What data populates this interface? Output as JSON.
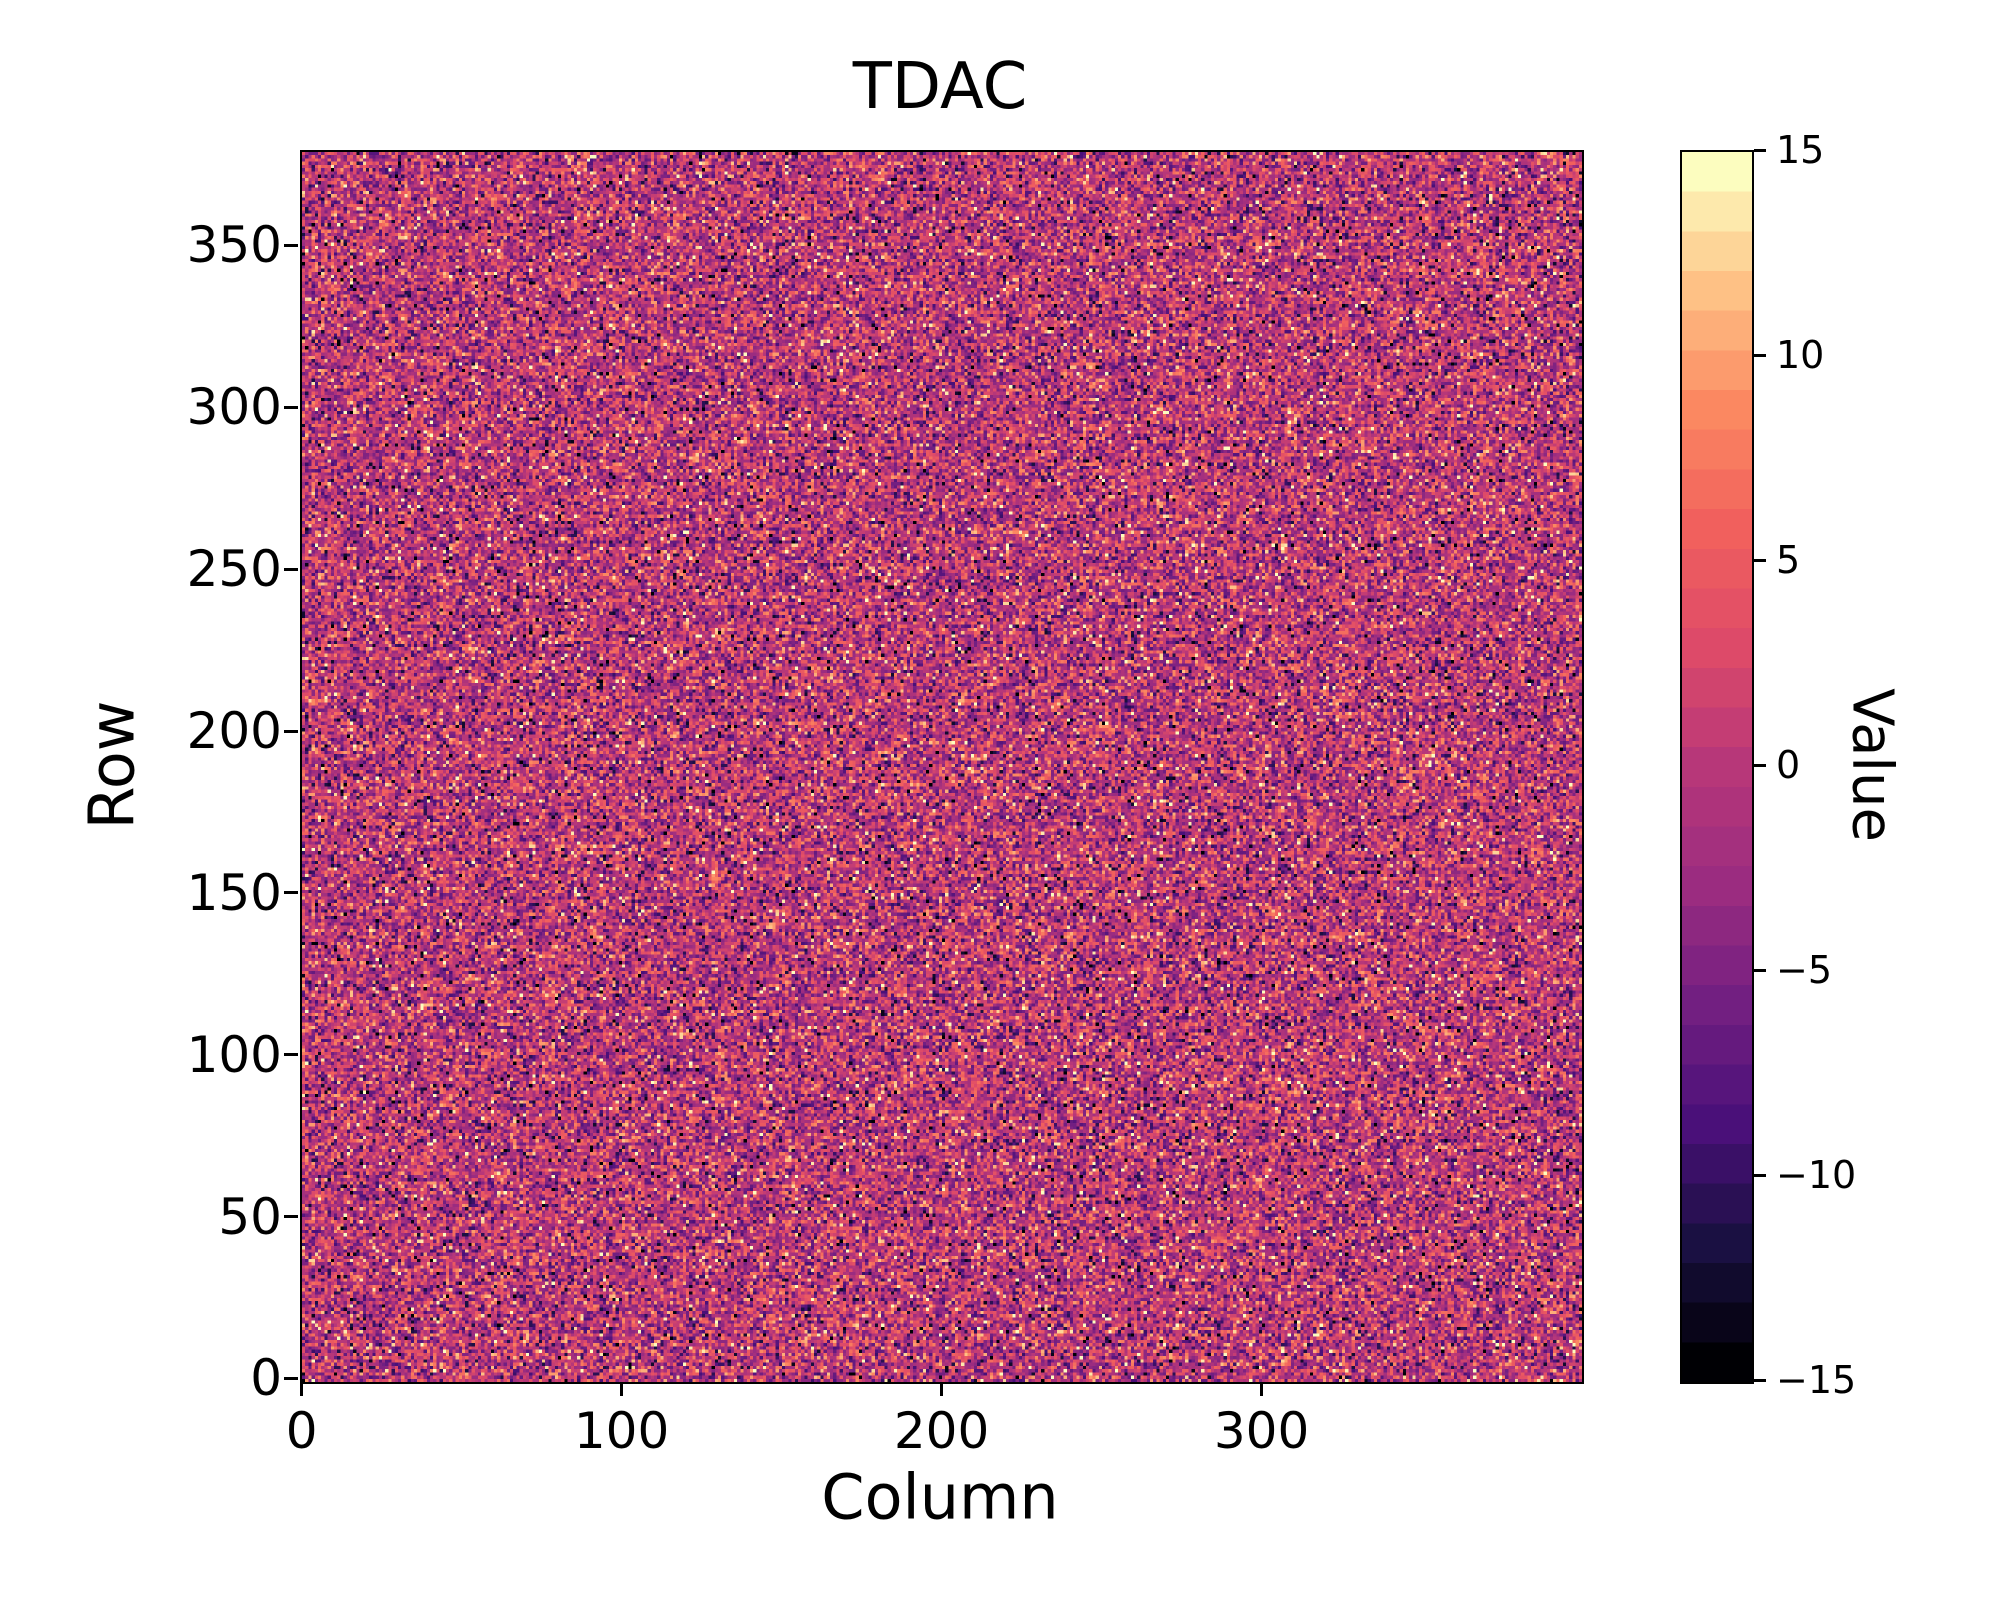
{
  "chart_data": {
    "type": "heatmap",
    "title": "TDAC",
    "xlabel": "Column",
    "ylabel": "Row",
    "colorbar_label": "Value",
    "n_cols": 400,
    "n_rows": 380,
    "vmin": -15,
    "vmax": 15,
    "value_levels": 31,
    "x_tick_values": [
      0,
      100,
      200,
      300
    ],
    "x_tick_labels": [
      "0",
      "100",
      "200",
      "300"
    ],
    "y_tick_values": [
      0,
      50,
      100,
      150,
      200,
      250,
      300,
      350
    ],
    "y_tick_labels": [
      "0",
      "50",
      "100",
      "150",
      "200",
      "250",
      "300",
      "350"
    ],
    "colorbar_tick_values": [
      15,
      10,
      5,
      0,
      -5,
      -10,
      -15
    ],
    "colorbar_tick_labels": [
      "15",
      "10",
      "5",
      "0",
      "−5",
      "−10",
      "−15"
    ],
    "grid": false,
    "legend": "none (colorbar on right)",
    "data_description": "Per-pixel trim-DAC noise map: integer values -15..15, roughly Gaussian distributed around 0 (sd ≈ 6), no large-scale structure",
    "noise": {
      "mean": 0,
      "sigma": 6,
      "seed": 1337
    },
    "colormap": {
      "name": "magma",
      "stops": [
        [
          0.0,
          "#000004"
        ],
        [
          0.1,
          "#1a1042"
        ],
        [
          0.2,
          "#4a1079"
        ],
        [
          0.3,
          "#721f81"
        ],
        [
          0.4,
          "#9b2c80"
        ],
        [
          0.5,
          "#b73779"
        ],
        [
          0.6,
          "#dd4a69"
        ],
        [
          0.7,
          "#f1605d"
        ],
        [
          0.8,
          "#fb8861"
        ],
        [
          0.9,
          "#fec185"
        ],
        [
          1.0,
          "#fcfdbf"
        ]
      ]
    }
  }
}
